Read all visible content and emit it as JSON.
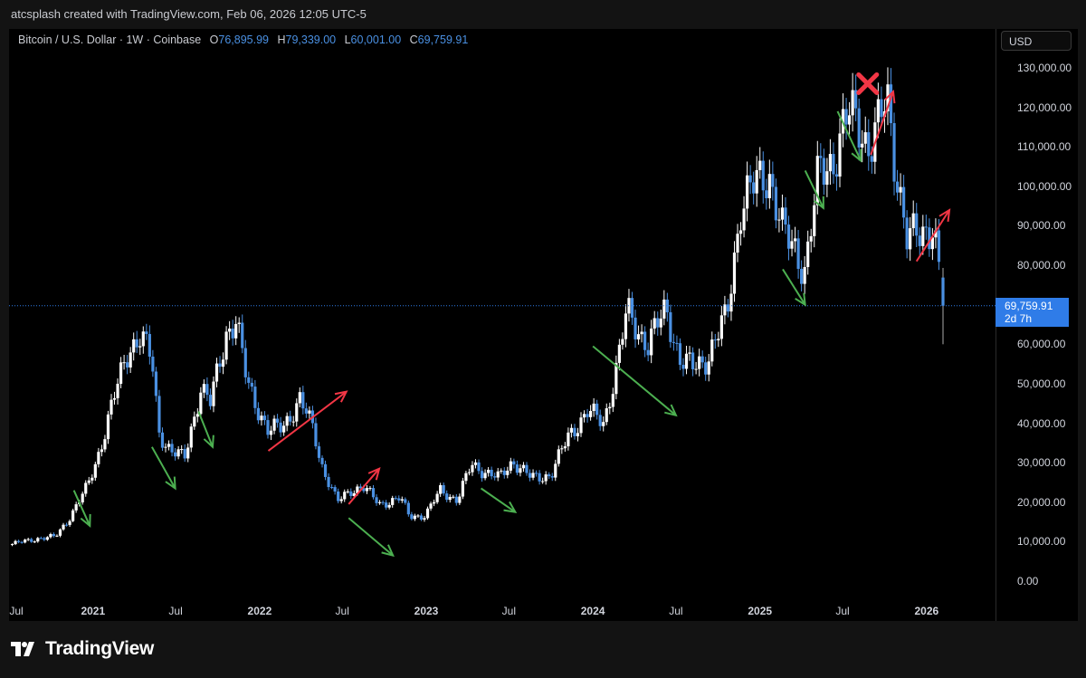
{
  "credit": "atcsplash created with TradingView.com, Feb 06, 2026 12:05 UTC-5",
  "symbol_line": "Bitcoin / U.S. Dollar · 1W · Coinbase",
  "ohlc": {
    "o_label": "O",
    "o": "76,895.99",
    "h_label": "H",
    "h": "79,339.00",
    "l_label": "L",
    "l": "60,001.00",
    "c_label": "C",
    "c": "69,759.91"
  },
  "currency_button": "USD",
  "last_price_badge": {
    "price": "69,759.91",
    "countdown": "2d 7h"
  },
  "brand": "TradingView",
  "colors": {
    "background": "#000000",
    "up_candle": "#ffffff",
    "down_candle": "#4a90e2",
    "price_line": "#2f7ce8",
    "green_arrow": "#4caf50",
    "red_arrow": "#f23645",
    "red_cross": "#f23645"
  },
  "chart_data": {
    "type": "candlestick",
    "series_name": "Bitcoin / U.S. Dollar",
    "interval": "1W",
    "ylim": [
      0,
      130000
    ],
    "y_ticks": [
      {
        "value": 130000,
        "label": "130,000.00"
      },
      {
        "value": 120000,
        "label": "120,000.00"
      },
      {
        "value": 110000,
        "label": "110,000.00"
      },
      {
        "value": 100000,
        "label": "100,000.00"
      },
      {
        "value": 90000,
        "label": "90,000.00"
      },
      {
        "value": 80000,
        "label": "80,000.00"
      },
      {
        "value": 60000,
        "label": "60,000.00"
      },
      {
        "value": 50000,
        "label": "50,000.00"
      },
      {
        "value": 40000,
        "label": "40,000.00"
      },
      {
        "value": 30000,
        "label": "30,000.00"
      },
      {
        "value": 20000,
        "label": "20,000.00"
      },
      {
        "value": 10000,
        "label": "10,000.00"
      },
      {
        "value": 0,
        "label": "0.00"
      }
    ],
    "x_range": [
      "2020-07-01",
      "2026-06-01"
    ],
    "x_ticks": [
      {
        "date": "2020-07-01",
        "label": "Jul",
        "year": false
      },
      {
        "date": "2021-01-01",
        "label": "2021",
        "year": true
      },
      {
        "date": "2021-07-01",
        "label": "Jul",
        "year": false
      },
      {
        "date": "2022-01-01",
        "label": "2022",
        "year": true
      },
      {
        "date": "2022-07-01",
        "label": "Jul",
        "year": false
      },
      {
        "date": "2023-01-01",
        "label": "2023",
        "year": true
      },
      {
        "date": "2023-07-01",
        "label": "Jul",
        "year": false
      },
      {
        "date": "2024-01-01",
        "label": "2024",
        "year": true
      },
      {
        "date": "2024-07-01",
        "label": "Jul",
        "year": false
      },
      {
        "date": "2025-01-01",
        "label": "2025",
        "year": true
      },
      {
        "date": "2025-07-01",
        "label": "Jul",
        "year": false
      },
      {
        "date": "2026-01-01",
        "label": "2026",
        "year": true
      }
    ],
    "last_close": 69759.91,
    "path_anchors": [
      {
        "date": "2020-07-01",
        "price": 9200
      },
      {
        "date": "2020-09-01",
        "price": 10800
      },
      {
        "date": "2020-10-10",
        "price": 11200
      },
      {
        "date": "2020-11-10",
        "price": 16000
      },
      {
        "date": "2020-12-20",
        "price": 24000
      },
      {
        "date": "2021-01-15",
        "price": 33000
      },
      {
        "date": "2021-02-20",
        "price": 48000
      },
      {
        "date": "2021-03-20",
        "price": 59000
      },
      {
        "date": "2021-04-15",
        "price": 62000
      },
      {
        "date": "2021-05-10",
        "price": 56000
      },
      {
        "date": "2021-05-25",
        "price": 38000
      },
      {
        "date": "2021-06-20",
        "price": 33000
      },
      {
        "date": "2021-07-20",
        "price": 31000
      },
      {
        "date": "2021-08-25",
        "price": 49000
      },
      {
        "date": "2021-09-15",
        "price": 45000
      },
      {
        "date": "2021-10-20",
        "price": 63000
      },
      {
        "date": "2021-11-10",
        "price": 66000
      },
      {
        "date": "2021-12-05",
        "price": 50000
      },
      {
        "date": "2022-01-20",
        "price": 38000
      },
      {
        "date": "2022-02-20",
        "price": 39000
      },
      {
        "date": "2022-03-30",
        "price": 46000
      },
      {
        "date": "2022-04-30",
        "price": 38000
      },
      {
        "date": "2022-05-15",
        "price": 30000
      },
      {
        "date": "2022-06-20",
        "price": 20000
      },
      {
        "date": "2022-07-20",
        "price": 23000
      },
      {
        "date": "2022-08-15",
        "price": 24000
      },
      {
        "date": "2022-09-20",
        "price": 19500
      },
      {
        "date": "2022-11-05",
        "price": 21000
      },
      {
        "date": "2022-11-25",
        "price": 16500
      },
      {
        "date": "2022-12-30",
        "price": 16600
      },
      {
        "date": "2023-02-01",
        "price": 23000
      },
      {
        "date": "2023-03-10",
        "price": 20500
      },
      {
        "date": "2023-04-10",
        "price": 29500
      },
      {
        "date": "2023-06-10",
        "price": 26000
      },
      {
        "date": "2023-07-10",
        "price": 30500
      },
      {
        "date": "2023-08-20",
        "price": 26000
      },
      {
        "date": "2023-10-01",
        "price": 27000
      },
      {
        "date": "2023-11-10",
        "price": 37000
      },
      {
        "date": "2023-12-20",
        "price": 43000
      },
      {
        "date": "2024-01-25",
        "price": 40000
      },
      {
        "date": "2024-02-25",
        "price": 56000
      },
      {
        "date": "2024-03-15",
        "price": 68000
      },
      {
        "date": "2024-05-01",
        "price": 60000
      },
      {
        "date": "2024-06-10",
        "price": 69000
      },
      {
        "date": "2024-07-10",
        "price": 56000
      },
      {
        "date": "2024-08-05",
        "price": 54000
      },
      {
        "date": "2024-09-10",
        "price": 57000
      },
      {
        "date": "2024-10-20",
        "price": 67000
      },
      {
        "date": "2024-11-20",
        "price": 95000
      },
      {
        "date": "2024-12-20",
        "price": 100000
      },
      {
        "date": "2025-01-20",
        "price": 104000
      },
      {
        "date": "2025-02-20",
        "price": 88000
      },
      {
        "date": "2025-03-20",
        "price": 84000
      },
      {
        "date": "2025-04-10",
        "price": 79000
      },
      {
        "date": "2025-05-10",
        "price": 103000
      },
      {
        "date": "2025-06-10",
        "price": 107000
      },
      {
        "date": "2025-07-15",
        "price": 118000
      },
      {
        "date": "2025-08-10",
        "price": 116000
      },
      {
        "date": "2025-08-25",
        "price": 110000
      },
      {
        "date": "2025-09-20",
        "price": 115000
      },
      {
        "date": "2025-10-06",
        "price": 123000
      },
      {
        "date": "2025-10-20",
        "price": 110000
      },
      {
        "date": "2025-11-20",
        "price": 86000
      },
      {
        "date": "2025-12-20",
        "price": 88000
      },
      {
        "date": "2026-01-15",
        "price": 91000
      },
      {
        "date": "2026-01-25",
        "price": 82000
      },
      {
        "date": "2026-02-06",
        "price": 69760
      }
    ],
    "last_candle": {
      "date": "2026-02-06",
      "open": 76895.99,
      "high": 79339.0,
      "low": 60001.0,
      "close": 69759.91
    },
    "annotations": {
      "green_arrows": [
        {
          "from": {
            "date": "2020-11-20",
            "price": 23000
          },
          "to": {
            "date": "2020-12-25",
            "price": 14000
          }
        },
        {
          "from": {
            "date": "2021-05-10",
            "price": 34000
          },
          "to": {
            "date": "2021-06-30",
            "price": 23500
          }
        },
        {
          "from": {
            "date": "2021-08-20",
            "price": 43000
          },
          "to": {
            "date": "2021-09-20",
            "price": 34000
          }
        },
        {
          "from": {
            "date": "2022-07-15",
            "price": 16000
          },
          "to": {
            "date": "2022-10-20",
            "price": 6500
          }
        },
        {
          "from": {
            "date": "2023-05-01",
            "price": 23500
          },
          "to": {
            "date": "2023-07-15",
            "price": 17500
          }
        },
        {
          "from": {
            "date": "2024-01-01",
            "price": 59500
          },
          "to": {
            "date": "2024-07-01",
            "price": 42000
          }
        },
        {
          "from": {
            "date": "2025-02-20",
            "price": 79000
          },
          "to": {
            "date": "2025-04-10",
            "price": 70000
          }
        },
        {
          "from": {
            "date": "2025-04-10",
            "price": 104000
          },
          "to": {
            "date": "2025-05-20",
            "price": 94500
          }
        },
        {
          "from": {
            "date": "2025-06-20",
            "price": 119000
          },
          "to": {
            "date": "2025-08-10",
            "price": 106500
          }
        }
      ],
      "red_arrows": [
        {
          "from": {
            "date": "2022-01-20",
            "price": 33000
          },
          "to": {
            "date": "2022-07-10",
            "price": 48000
          }
        },
        {
          "from": {
            "date": "2022-07-15",
            "price": 19500
          },
          "to": {
            "date": "2022-09-20",
            "price": 28500
          }
        },
        {
          "from": {
            "date": "2025-09-01",
            "price": 108000
          },
          "to": {
            "date": "2025-10-20",
            "price": 124000
          }
        },
        {
          "from": {
            "date": "2025-12-10",
            "price": 81000
          },
          "to": {
            "date": "2026-02-20",
            "price": 94000
          }
        }
      ],
      "cross": {
        "date": "2025-08-25",
        "price": 126000
      }
    }
  }
}
